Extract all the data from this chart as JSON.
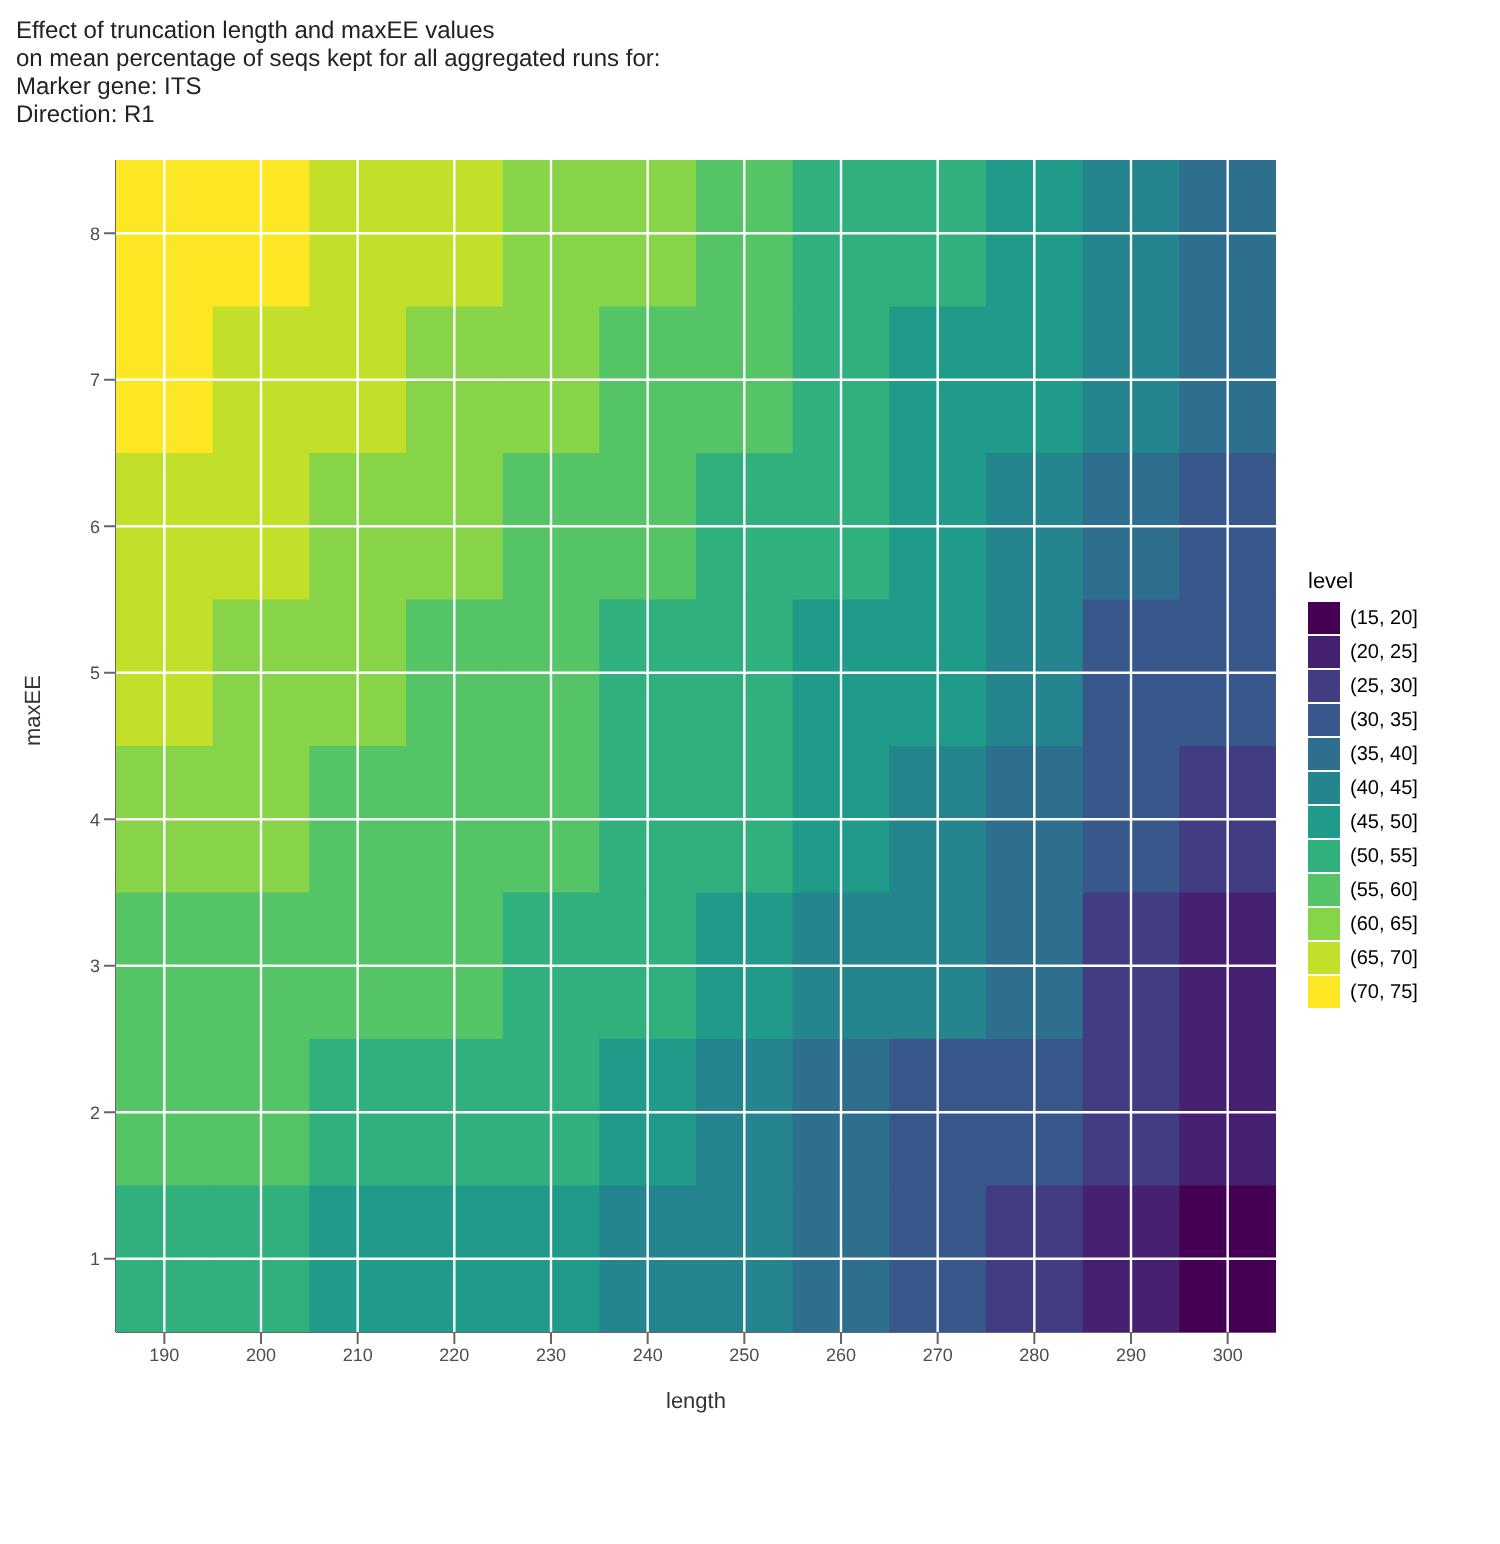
{
  "chart_data": {
    "type": "heatmap",
    "title": "Effect of truncation length and maxEE values",
    "subtitle": "on mean percentage of seqs kept for all aggregated runs for:\nMarker gene: ITS\nDirection: R1",
    "xlabel": "length",
    "ylabel": "maxEE",
    "clabel": "level",
    "categories": [
      "190",
      "200",
      "210",
      "220",
      "230",
      "240",
      "250",
      "260",
      "270",
      "280",
      "290",
      "300"
    ],
    "y_categories": [
      "8",
      "7",
      "6",
      "5",
      "4",
      "3",
      "2",
      "1"
    ],
    "cells": [
      [
        72.5,
        72.5,
        67.5,
        67.5,
        62.5,
        62.5,
        57.5,
        52.5,
        52.5,
        47.5,
        42.5,
        37.5
      ],
      [
        72.5,
        67.5,
        67.5,
        62.5,
        62.5,
        57.5,
        57.5,
        52.5,
        47.5,
        47.5,
        42.5,
        37.5
      ],
      [
        67.5,
        67.5,
        62.5,
        62.5,
        57.5,
        57.5,
        52.5,
        52.5,
        47.5,
        42.5,
        37.5,
        32.5
      ],
      [
        67.5,
        62.5,
        62.5,
        57.5,
        57.5,
        52.5,
        52.5,
        47.5,
        47.5,
        42.5,
        32.5,
        32.5
      ],
      [
        62.5,
        62.5,
        57.5,
        57.5,
        57.5,
        52.5,
        52.5,
        47.5,
        42.5,
        37.5,
        32.5,
        27.5
      ],
      [
        57.5,
        57.5,
        57.5,
        57.5,
        52.5,
        52.5,
        47.5,
        42.5,
        42.5,
        37.5,
        27.5,
        22.5
      ],
      [
        57.5,
        57.5,
        52.5,
        52.5,
        52.5,
        47.5,
        42.5,
        37.5,
        32.5,
        32.5,
        27.5,
        22.5
      ],
      [
        52.5,
        52.5,
        47.5,
        47.5,
        47.5,
        42.5,
        42.5,
        37.5,
        32.5,
        27.5,
        22.5,
        17.5
      ]
    ],
    "cticks": [
      {
        "value": 20,
        "label": "(15, 20]"
      },
      {
        "value": 25,
        "label": "(20, 25]"
      },
      {
        "value": 30,
        "label": "(25, 30]"
      },
      {
        "value": 35,
        "label": "(30, 35]"
      },
      {
        "value": 40,
        "label": "(35, 40]"
      },
      {
        "value": 45,
        "label": "(40, 45]"
      },
      {
        "value": 50,
        "label": "(45, 50]"
      },
      {
        "value": 55,
        "label": "(50, 55]"
      },
      {
        "value": 60,
        "label": "(55, 60]"
      },
      {
        "value": 65,
        "label": "(60, 65]"
      },
      {
        "value": 70,
        "label": "(65, 70]"
      },
      {
        "value": 75,
        "label": "(70, 75]"
      }
    ],
    "grid": true
  }
}
